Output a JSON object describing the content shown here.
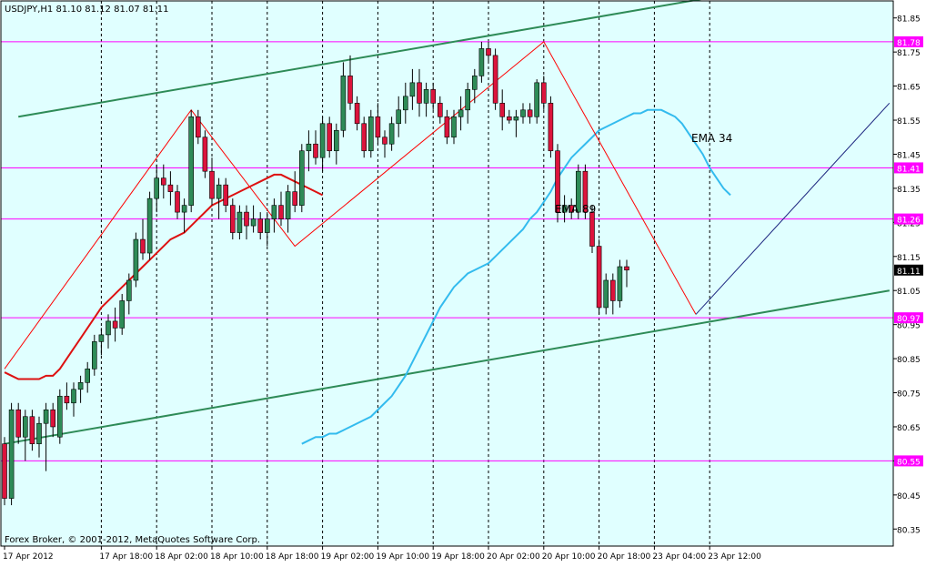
{
  "header": {
    "text": "USDJPY,H1  81.10 81.12 81.07 81.11"
  },
  "footer": {
    "copyright": "Forex Broker, © 2001-2012, MetaQuotes Software Corp."
  },
  "colors": {
    "background": "#e0ffff",
    "frame": "#000000",
    "grid": "#000000",
    "bull_body": "#2e8b57",
    "bear_body": "#dc143c",
    "ema34": "#33bbee",
    "ema89": "#dd1111",
    "channel": "#2e8b57",
    "horizontal": "#ff00ff",
    "zigzag": "#ff0000",
    "trend": "#1a237e",
    "price_tag_bg": "#ff00ff",
    "current_tag_bg": "#000000"
  },
  "chart_data": {
    "type": "candlestick",
    "symbol": "USDJPY",
    "timeframe": "H1",
    "ylim": [
      80.3,
      81.9
    ],
    "yticks": [
      81.85,
      81.75,
      81.65,
      81.55,
      81.45,
      81.35,
      81.25,
      81.15,
      81.05,
      80.95,
      80.85,
      80.75,
      80.65,
      80.55,
      80.45,
      80.35
    ],
    "xticks": [
      {
        "label": "17 Apr 2012",
        "bar": 0
      },
      {
        "label": "17 Apr 18:00",
        "bar": 14
      },
      {
        "label": "18 Apr 02:00",
        "bar": 22
      },
      {
        "label": "18 Apr 10:00",
        "bar": 30
      },
      {
        "label": "18 Apr 18:00",
        "bar": 38
      },
      {
        "label": "19 Apr 02:00",
        "bar": 46
      },
      {
        "label": "19 Apr 10:00",
        "bar": 54
      },
      {
        "label": "19 Apr 18:00",
        "bar": 62
      },
      {
        "label": "20 Apr 02:00",
        "bar": 70
      },
      {
        "label": "20 Apr 10:00",
        "bar": 78
      },
      {
        "label": "20 Apr 18:00",
        "bar": 86
      },
      {
        "label": "23 Apr 04:00",
        "bar": 94
      },
      {
        "label": "23 Apr 12:00",
        "bar": 102
      }
    ],
    "ohlc": [
      [
        80.6,
        80.62,
        80.42,
        80.44
      ],
      [
        80.44,
        80.72,
        80.42,
        80.7
      ],
      [
        80.7,
        80.72,
        80.6,
        80.62
      ],
      [
        80.62,
        80.7,
        80.55,
        80.68
      ],
      [
        80.68,
        80.7,
        80.58,
        80.6
      ],
      [
        80.6,
        80.68,
        80.56,
        80.66
      ],
      [
        80.66,
        80.72,
        80.52,
        80.7
      ],
      [
        80.7,
        80.72,
        80.62,
        80.65
      ],
      [
        80.62,
        80.76,
        80.6,
        80.74
      ],
      [
        80.74,
        80.78,
        80.7,
        80.72
      ],
      [
        80.72,
        80.78,
        80.68,
        80.76
      ],
      [
        80.76,
        80.8,
        80.72,
        80.78
      ],
      [
        80.78,
        80.84,
        80.75,
        80.82
      ],
      [
        80.82,
        80.92,
        80.8,
        80.9
      ],
      [
        80.9,
        80.94,
        80.86,
        80.92
      ],
      [
        80.92,
        80.98,
        80.88,
        80.96
      ],
      [
        80.96,
        81.0,
        80.9,
        80.94
      ],
      [
        80.94,
        81.04,
        80.92,
        81.02
      ],
      [
        81.02,
        81.1,
        80.98,
        81.08
      ],
      [
        81.08,
        81.22,
        81.06,
        81.2
      ],
      [
        81.2,
        81.26,
        81.14,
        81.16
      ],
      [
        81.16,
        81.34,
        81.14,
        81.32
      ],
      [
        81.32,
        81.42,
        81.28,
        81.38
      ],
      [
        81.38,
        81.42,
        81.32,
        81.36
      ],
      [
        81.36,
        81.4,
        81.3,
        81.34
      ],
      [
        81.34,
        81.36,
        81.26,
        81.28
      ],
      [
        81.28,
        81.32,
        81.22,
        81.3
      ],
      [
        81.3,
        81.58,
        81.28,
        81.56
      ],
      [
        81.56,
        81.58,
        81.48,
        81.5
      ],
      [
        81.5,
        81.52,
        81.38,
        81.4
      ],
      [
        81.4,
        81.44,
        81.3,
        81.32
      ],
      [
        81.32,
        81.38,
        81.26,
        81.36
      ],
      [
        81.36,
        81.38,
        81.28,
        81.3
      ],
      [
        81.3,
        81.32,
        81.2,
        81.22
      ],
      [
        81.22,
        81.3,
        81.2,
        81.28
      ],
      [
        81.28,
        81.3,
        81.2,
        81.24
      ],
      [
        81.24,
        81.3,
        81.22,
        81.26
      ],
      [
        81.26,
        81.28,
        81.2,
        81.22
      ],
      [
        81.22,
        81.28,
        81.18,
        81.26
      ],
      [
        81.26,
        81.32,
        81.22,
        81.3
      ],
      [
        81.3,
        81.34,
        81.24,
        81.26
      ],
      [
        81.26,
        81.36,
        81.22,
        81.34
      ],
      [
        81.34,
        81.4,
        81.28,
        81.3
      ],
      [
        81.3,
        81.48,
        81.28,
        81.46
      ],
      [
        81.46,
        81.52,
        81.4,
        81.48
      ],
      [
        81.48,
        81.52,
        81.42,
        81.44
      ],
      [
        81.44,
        81.56,
        81.4,
        81.54
      ],
      [
        81.54,
        81.56,
        81.44,
        81.46
      ],
      [
        81.46,
        81.54,
        81.42,
        81.52
      ],
      [
        81.52,
        81.72,
        81.5,
        81.68
      ],
      [
        81.68,
        81.74,
        81.58,
        81.6
      ],
      [
        81.6,
        81.62,
        81.52,
        81.54
      ],
      [
        81.54,
        81.56,
        81.44,
        81.46
      ],
      [
        81.46,
        81.58,
        81.44,
        81.56
      ],
      [
        81.56,
        81.6,
        81.48,
        81.5
      ],
      [
        81.5,
        81.52,
        81.44,
        81.48
      ],
      [
        81.48,
        81.56,
        81.46,
        81.54
      ],
      [
        81.54,
        81.62,
        81.5,
        81.58
      ],
      [
        81.58,
        81.66,
        81.54,
        81.62
      ],
      [
        81.62,
        81.7,
        81.58,
        81.66
      ],
      [
        81.66,
        81.7,
        81.56,
        81.6
      ],
      [
        81.6,
        81.66,
        81.56,
        81.64
      ],
      [
        81.64,
        81.66,
        81.58,
        81.6
      ],
      [
        81.6,
        81.62,
        81.54,
        81.56
      ],
      [
        81.56,
        81.58,
        81.48,
        81.5
      ],
      [
        81.5,
        81.58,
        81.48,
        81.56
      ],
      [
        81.56,
        81.62,
        81.52,
        81.58
      ],
      [
        81.58,
        81.66,
        81.54,
        81.64
      ],
      [
        81.64,
        81.7,
        81.6,
        81.68
      ],
      [
        81.68,
        81.78,
        81.66,
        81.76
      ],
      [
        81.76,
        81.78,
        81.72,
        81.74
      ],
      [
        81.74,
        81.76,
        81.58,
        81.6
      ],
      [
        81.6,
        81.64,
        81.52,
        81.56
      ],
      [
        81.56,
        81.58,
        81.54,
        81.55
      ],
      [
        81.55,
        81.58,
        81.5,
        81.56
      ],
      [
        81.56,
        81.6,
        81.54,
        81.58
      ],
      [
        81.58,
        81.6,
        81.54,
        81.56
      ],
      [
        81.56,
        81.67,
        81.54,
        81.66
      ],
      [
        81.66,
        81.68,
        81.58,
        81.6
      ],
      [
        81.6,
        81.62,
        81.44,
        81.46
      ],
      [
        81.46,
        81.48,
        81.25,
        81.28
      ],
      [
        81.28,
        81.33,
        81.25,
        81.3
      ],
      [
        81.3,
        81.32,
        81.26,
        81.28
      ],
      [
        81.28,
        81.42,
        81.26,
        81.4
      ],
      [
        81.4,
        81.42,
        81.26,
        81.28
      ],
      [
        81.28,
        81.3,
        81.16,
        81.18
      ],
      [
        81.18,
        81.2,
        80.98,
        81.0
      ],
      [
        81.0,
        81.1,
        80.98,
        81.08
      ],
      [
        81.08,
        81.1,
        80.98,
        81.02
      ],
      [
        81.02,
        81.14,
        81.0,
        81.12
      ],
      [
        81.12,
        81.14,
        81.06,
        81.11
      ]
    ],
    "series": [
      {
        "name": "EMA 34",
        "values": [
          80.6,
          80.61,
          80.62,
          80.62,
          80.63,
          80.63,
          80.64,
          80.65,
          80.66,
          80.67,
          80.68,
          80.7,
          80.72,
          80.74,
          80.77,
          80.8,
          80.84,
          80.88,
          80.92,
          80.96,
          81.0,
          81.03,
          81.06,
          81.08,
          81.1,
          81.11,
          81.12,
          81.13,
          81.15,
          81.17,
          81.19,
          81.21,
          81.23,
          81.26,
          81.28,
          81.31,
          81.34,
          81.38,
          81.41,
          81.44,
          81.46,
          81.48,
          81.5,
          81.52,
          81.53,
          81.54,
          81.55,
          81.56,
          81.57,
          81.57,
          81.58,
          81.58,
          81.58,
          81.57,
          81.56,
          81.54,
          81.51,
          81.48,
          81.45,
          81.41,
          81.38,
          81.35,
          81.33
        ]
      },
      {
        "name": "EMA 89",
        "values": [
          80.81,
          80.8,
          80.79,
          80.79,
          80.79,
          80.79,
          80.8,
          80.8,
          80.82,
          80.85,
          80.88,
          80.91,
          80.94,
          80.97,
          81.0,
          81.02,
          81.04,
          81.06,
          81.08,
          81.1,
          81.12,
          81.14,
          81.16,
          81.18,
          81.2,
          81.21,
          81.22,
          81.24,
          81.26,
          81.28,
          81.3,
          81.31,
          81.32,
          81.33,
          81.34,
          81.35,
          81.36,
          81.37,
          81.38,
          81.39,
          81.39,
          81.38,
          81.37,
          81.36,
          81.35,
          81.34,
          81.33
        ]
      },
      {
        "name": "Zigzag",
        "values": []
      }
    ],
    "levels": [
      81.78,
      81.41,
      81.26,
      80.97,
      80.55
    ],
    "level_labels": [
      "81.78",
      "81.41",
      "81.26",
      "80.97",
      "80.55"
    ],
    "current_price": 81.11,
    "current_label": "81.11",
    "annotations": [
      {
        "text": "EMA 34"
      },
      {
        "text": "EMA 89"
      }
    ]
  }
}
